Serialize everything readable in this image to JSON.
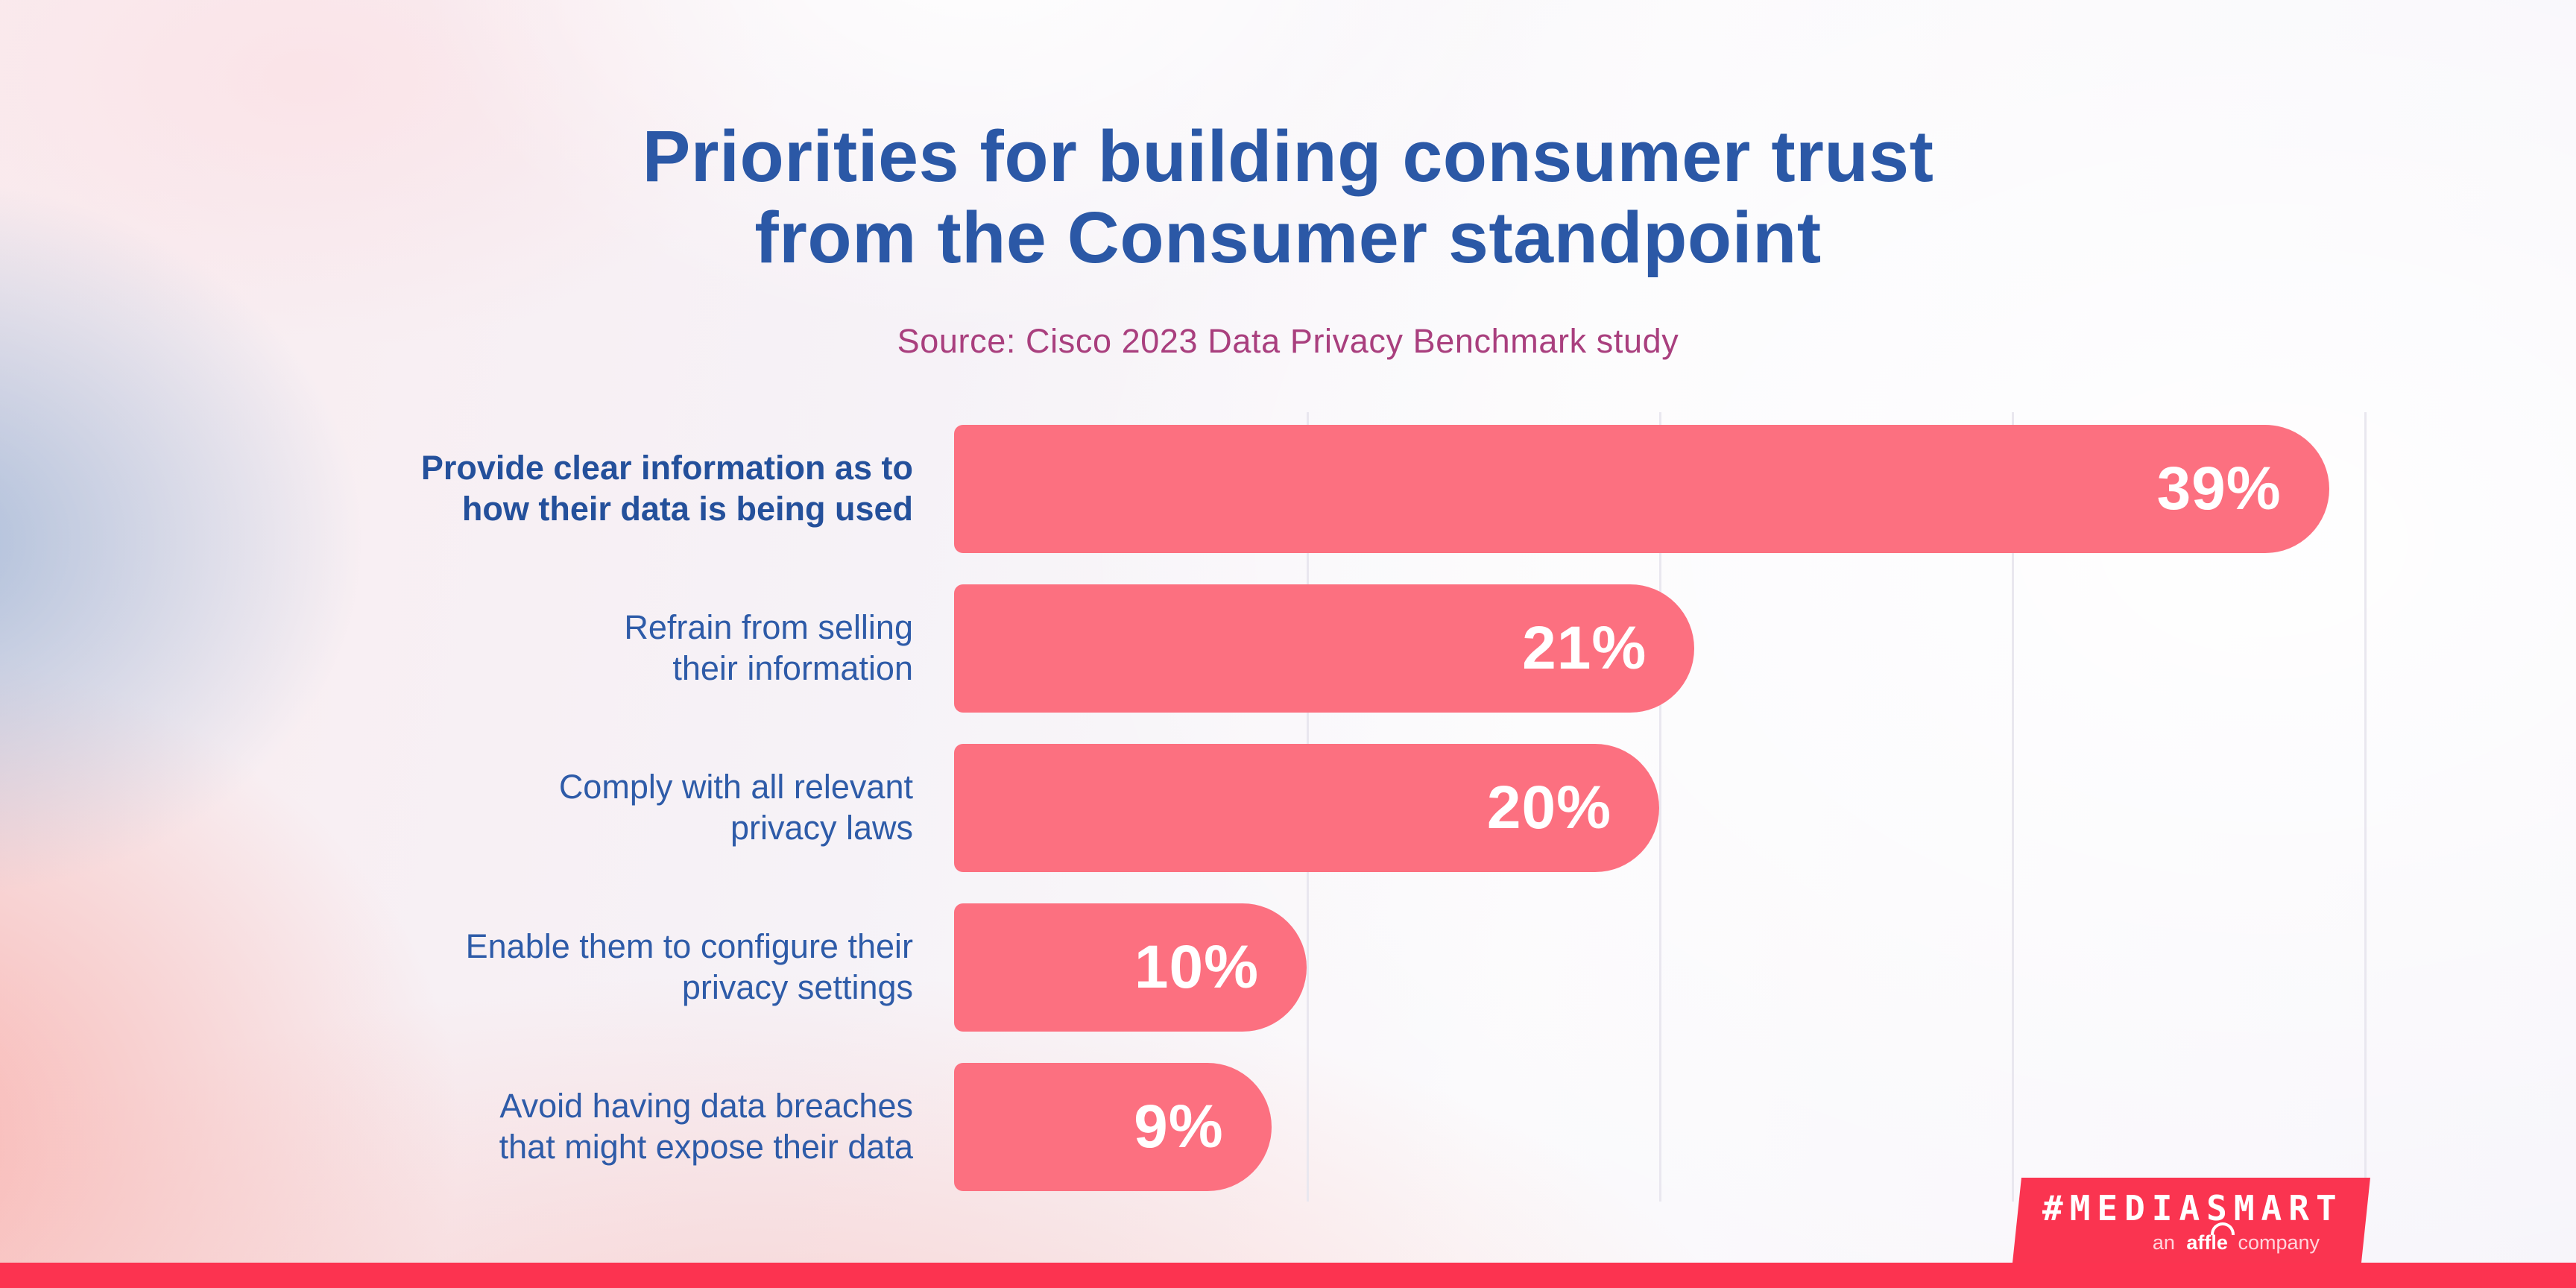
{
  "title": {
    "line1": "Priorities for building consumer trust",
    "line2": "from the Consumer standpoint",
    "color": "#2b58a6"
  },
  "source": {
    "text": "Source: Cisco 2023 Data Privacy Benchmark study",
    "color": "#a93f7e"
  },
  "chart_data": {
    "type": "bar",
    "orientation": "horizontal",
    "title": "Priorities for building consumer trust from the Consumer standpoint",
    "subtitle": "Source: Cisco 2023 Data Privacy Benchmark study",
    "categories": [
      "Provide clear information as to how their data is being used",
      "Refrain from selling their information",
      "Comply with all relevant privacy laws",
      "Enable them to configure their privacy settings",
      "Avoid having data breaches that might expose their data"
    ],
    "values": [
      39,
      21,
      20,
      10,
      9
    ],
    "unit": "%",
    "xlim": [
      0,
      40
    ],
    "gridlines_at": [
      10,
      20,
      30,
      40
    ],
    "grid_on": true,
    "legend": false,
    "bar_color": "#fc7080",
    "value_label_color": "#ffffff",
    "label_color": "#2e5ba8",
    "grid_color": "#e9e7ef"
  },
  "rows": [
    {
      "line1": "Provide clear information as to",
      "line2": "how their data is being used",
      "value_label": "39%"
    },
    {
      "line1": "Refrain from selling",
      "line2": "their information",
      "value_label": "21%"
    },
    {
      "line1": "Comply with all relevant",
      "line2": "privacy laws",
      "value_label": "20%"
    },
    {
      "line1": "Enable them to configure their",
      "line2": "privacy settings",
      "value_label": "10%"
    },
    {
      "line1": "Avoid having data breaches",
      "line2": "that might expose their data",
      "value_label": "9%"
    }
  ],
  "footer": {
    "strip_color": "#fc3350",
    "banner_color": "#fa3450",
    "brand": "#MEDIASMART",
    "sub_an": "an",
    "sub_affle": "affle",
    "sub_company": "company"
  }
}
